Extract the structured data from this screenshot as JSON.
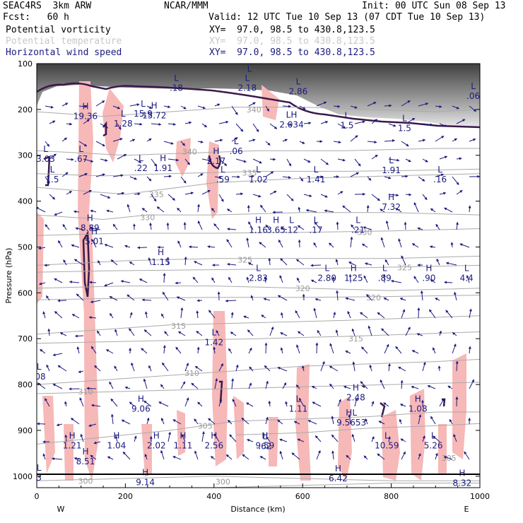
{
  "header": {
    "model": "SEAC4RS  3km ARW",
    "org": "NCAR/MMM",
    "init": "Init: 00 UTC Sun 08 Sep 13",
    "fcst": "Fcst:   60 h",
    "valid": "Valid: 12 UTC Tue 10 Sep 13 (07 CDT Tue 10 Sep 13)",
    "fields": [
      {
        "name": "Potential vorticity",
        "xy": "XY=  97.0, 98.5 to 430.8,123.5",
        "color": "#000000"
      },
      {
        "name": "Potential temperature",
        "xy": "XY=  97.0, 98.5 to 430.8,123.5",
        "color": "#c8c8c8"
      },
      {
        "name": "Horizontal wind speed",
        "xy": "XY=  97.0, 98.5 to 430.8,123.5",
        "color": "#1a1a80"
      }
    ]
  },
  "chart_data": {
    "type": "contour-cross-section",
    "xlabel": "Distance (km)",
    "ylabel": "Pressure (hPa)",
    "xlim": [
      0,
      1000
    ],
    "ylim": [
      1025,
      100
    ],
    "x_ticks": [
      0,
      200,
      400,
      600,
      800,
      1000
    ],
    "y_ticks": [
      100,
      200,
      300,
      400,
      500,
      600,
      700,
      800,
      900,
      1000
    ],
    "x_end_labels": {
      "left": "W",
      "right": "E"
    },
    "colors": {
      "pv_contour": "#3a1a4a",
      "pv_fill": "#f7b8b8",
      "theta": "#aaaaaa",
      "wind_labels": "#1a1a80",
      "ground": "#000000"
    },
    "theta_isentropes": [
      {
        "value": "340",
        "x": [
          0,
          150,
          300,
          450,
          600,
          750,
          900,
          1000
        ],
        "p": [
          205,
          215,
          205,
          195,
          195,
          200,
          205,
          200
        ],
        "label_x": 490,
        "label_p": 200
      },
      {
        "value": "340",
        "x": [
          0,
          200,
          350,
          500,
          700,
          900,
          1000
        ],
        "p": [
          290,
          300,
          295,
          290,
          290,
          285,
          285
        ],
        "label_x": 345,
        "label_p": 292
      },
      {
        "value": "335",
        "x": [
          0,
          200,
          400,
          600,
          800,
          1000
        ],
        "p": [
          370,
          385,
          360,
          350,
          345,
          340
        ],
        "label_x": 270,
        "label_p": 385
      },
      {
        "value": "335",
        "x": [
          0,
          150,
          300,
          500,
          700,
          850,
          1000
        ],
        "p": [
          340,
          345,
          340,
          335,
          335,
          333,
          330
        ],
        "label_x": 480,
        "label_p": 338
      },
      {
        "value": "330",
        "x": [
          0,
          150,
          250,
          400,
          600,
          800,
          1000
        ],
        "p": [
          430,
          440,
          430,
          430,
          425,
          425,
          430
        ],
        "label_x": 250,
        "label_p": 435
      },
      {
        "value": "330",
        "x": [
          0,
          200,
          400,
          600,
          800,
          1000
        ],
        "p": [
          475,
          470,
          470,
          468,
          465,
          460
        ],
        "label_x": 740,
        "label_p": 468
      },
      {
        "value": "325",
        "x": [
          0,
          200,
          400,
          600,
          800,
          1000
        ],
        "p": [
          540,
          530,
          525,
          525,
          525,
          520
        ],
        "label_x": 470,
        "label_p": 528
      },
      {
        "value": "325",
        "x": [
          0,
          150,
          350,
          550,
          750,
          1000
        ],
        "p": [
          555,
          552,
          550,
          548,
          545,
          540
        ],
        "label_x": 830,
        "label_p": 545
      },
      {
        "value": "320",
        "x": [
          0,
          200,
          400,
          600,
          800,
          1000
        ],
        "p": [
          590,
          585,
          585,
          590,
          595,
          590
        ],
        "label_x": 600,
        "label_p": 590
      },
      {
        "value": "320",
        "x": [
          0,
          200,
          400,
          600,
          800,
          1000
        ],
        "p": [
          615,
          612,
          610,
          610,
          608,
          605
        ],
        "label_x": 760,
        "label_p": 610
      },
      {
        "value": "315",
        "x": [
          0,
          150,
          300,
          500,
          700,
          850,
          1000
        ],
        "p": [
          690,
          680,
          670,
          665,
          660,
          655,
          650
        ],
        "label_x": 320,
        "label_p": 672
      },
      {
        "value": "315",
        "x": [
          0,
          250,
          500,
          700,
          850,
          1000
        ],
        "p": [
          710,
          705,
          700,
          695,
          690,
          685
        ],
        "label_x": 720,
        "label_p": 700
      },
      {
        "value": "310",
        "x": [
          0,
          150,
          300,
          450,
          600,
          750,
          900,
          1000
        ],
        "p": [
          800,
          790,
          780,
          770,
          760,
          755,
          750,
          745
        ],
        "label_x": 350,
        "label_p": 775
      },
      {
        "value": "310",
        "x": [
          0,
          200,
          400,
          600,
          800,
          1000
        ],
        "p": [
          820,
          815,
          810,
          805,
          800,
          795
        ],
        "label_x": 110,
        "label_p": 815
      },
      {
        "value": "305",
        "x": [
          0,
          150,
          300,
          450,
          600,
          750,
          900,
          1000
        ],
        "p": [
          930,
          915,
          900,
          880,
          875,
          870,
          860,
          860
        ],
        "label_x": 380,
        "label_p": 890
      },
      {
        "value": "305",
        "x": [
          450,
          600,
          750,
          900,
          1000
        ],
        "p": [
          910,
          905,
          895,
          890,
          885
        ],
        "label_x": 930,
        "label_p": 960
      },
      {
        "value": "300",
        "x": [
          0,
          200,
          400,
          600,
          800,
          1000
        ],
        "p": [
          1010,
          1005,
          1000,
          1005,
          1010,
          1010
        ],
        "label_x": 110,
        "label_p": 1010
      },
      {
        "value": "300",
        "x": [
          400,
          600,
          800,
          1000
        ],
        "p": [
          1025,
          1020,
          1015,
          1015
        ],
        "label_x": 420,
        "label_p": 1012
      }
    ],
    "wind_extrema": [
      {
        "kind": "L",
        "x": 475,
        "p": 150,
        "value": "2.18"
      },
      {
        "kind": "L",
        "x": 590,
        "p": 158,
        "value": "2.86"
      },
      {
        "kind": "L",
        "x": 985,
        "p": 168,
        "value": ".06"
      },
      {
        "kind": "L",
        "x": 480,
        "p": 130,
        "value": ""
      },
      {
        "kind": "L",
        "x": 315,
        "p": 150,
        "value": ".18"
      },
      {
        "kind": "H",
        "x": 110,
        "p": 212,
        "value": "19.36"
      },
      {
        "kind": "H",
        "x": 265,
        "p": 210,
        "value": "15.72"
      },
      {
        "kind": "L",
        "x": 240,
        "p": 206,
        "value": "15.9"
      },
      {
        "kind": "L",
        "x": 195,
        "p": 228,
        "value": "1.28"
      },
      {
        "kind": "LH",
        "x": 575,
        "p": 230,
        "value": "2.034"
      },
      {
        "kind": "L",
        "x": 700,
        "p": 232,
        "value": "1.5"
      },
      {
        "kind": "L",
        "x": 830,
        "p": 238,
        "value": "1.5"
      },
      {
        "kind": "L",
        "x": 450,
        "p": 288,
        "value": ".06"
      },
      {
        "kind": "L",
        "x": 20,
        "p": 305,
        "value": "3.03"
      },
      {
        "kind": "L",
        "x": 100,
        "p": 305,
        "value": ".67"
      },
      {
        "kind": "L",
        "x": 235,
        "p": 325,
        "value": ".22"
      },
      {
        "kind": "H",
        "x": 285,
        "p": 325,
        "value": "1.91"
      },
      {
        "kind": "H",
        "x": 405,
        "p": 310,
        "value": "2.17"
      },
      {
        "kind": "L",
        "x": 500,
        "p": 350,
        "value": "1.02"
      },
      {
        "kind": "L",
        "x": 630,
        "p": 350,
        "value": "1.41"
      },
      {
        "kind": "L",
        "x": 800,
        "p": 330,
        "value": "1.91"
      },
      {
        "kind": "L",
        "x": 910,
        "p": 350,
        "value": ".16"
      },
      {
        "kind": "L",
        "x": 35,
        "p": 350,
        "value": "1.5"
      },
      {
        "kind": "L",
        "x": 420,
        "p": 350,
        "value": ".59"
      },
      {
        "kind": "H",
        "x": 800,
        "p": 410,
        "value": "7.32"
      },
      {
        "kind": "H",
        "x": 120,
        "p": 455,
        "value": "8.89"
      },
      {
        "kind": "H",
        "x": 130,
        "p": 485,
        "value": "5.01"
      },
      {
        "kind": "H",
        "x": 500,
        "p": 460,
        "value": "1.16"
      },
      {
        "kind": "H",
        "x": 540,
        "p": 460,
        "value": "3.65"
      },
      {
        "kind": "L",
        "x": 575,
        "p": 460,
        "value": ".12"
      },
      {
        "kind": "L",
        "x": 630,
        "p": 460,
        "value": ".17"
      },
      {
        "kind": "L",
        "x": 725,
        "p": 460,
        "value": ".21"
      },
      {
        "kind": "H",
        "x": 280,
        "p": 530,
        "value": "1.15"
      },
      {
        "kind": "L",
        "x": 500,
        "p": 565,
        "value": "2.83"
      },
      {
        "kind": "L",
        "x": 655,
        "p": 565,
        "value": "2.80"
      },
      {
        "kind": "H",
        "x": 715,
        "p": 565,
        "value": "1.25"
      },
      {
        "kind": "L",
        "x": 785,
        "p": 565,
        "value": ".89"
      },
      {
        "kind": "H",
        "x": 885,
        "p": 565,
        "value": ".90"
      },
      {
        "kind": "L",
        "x": 970,
        "p": 565,
        "value": "4.4"
      },
      {
        "kind": "L",
        "x": 400,
        "p": 705,
        "value": "1.42"
      },
      {
        "kind": "L",
        "x": 5,
        "p": 780,
        "value": ".08"
      },
      {
        "kind": "H",
        "x": 720,
        "p": 825,
        "value": "2.48"
      },
      {
        "kind": "H",
        "x": 235,
        "p": 850,
        "value": "9.06"
      },
      {
        "kind": "L",
        "x": 590,
        "p": 850,
        "value": "1.11"
      },
      {
        "kind": "H",
        "x": 860,
        "p": 850,
        "value": "1.08"
      },
      {
        "kind": "HL",
        "x": 710,
        "p": 880,
        "value": "9.5653"
      },
      {
        "kind": "H",
        "x": 80,
        "p": 930,
        "value": "1.21"
      },
      {
        "kind": "H",
        "x": 180,
        "p": 930,
        "value": "1.04"
      },
      {
        "kind": "H",
        "x": 270,
        "p": 930,
        "value": "2.02"
      },
      {
        "kind": "H",
        "x": 330,
        "p": 930,
        "value": "1.11"
      },
      {
        "kind": "H",
        "x": 400,
        "p": 930,
        "value": "2.56"
      },
      {
        "kind": "H",
        "x": 515,
        "p": 930,
        "value": "9.59"
      },
      {
        "kind": "L",
        "x": 515,
        "p": 932,
        "value": ".62"
      },
      {
        "kind": "L",
        "x": 790,
        "p": 930,
        "value": "10.59"
      },
      {
        "kind": "L",
        "x": 895,
        "p": 930,
        "value": "5.26"
      },
      {
        "kind": "H",
        "x": 110,
        "p": 965,
        "value": "8.51"
      },
      {
        "kind": "H",
        "x": 245,
        "p": 1010,
        "value": "9.14"
      },
      {
        "kind": "H",
        "x": 680,
        "p": 1002,
        "value": "6.42"
      },
      {
        "kind": "H",
        "x": 960,
        "p": 1012,
        "value": "8.32"
      },
      {
        "kind": "L",
        "x": 5,
        "p": 1000,
        "value": "3"
      }
    ]
  }
}
